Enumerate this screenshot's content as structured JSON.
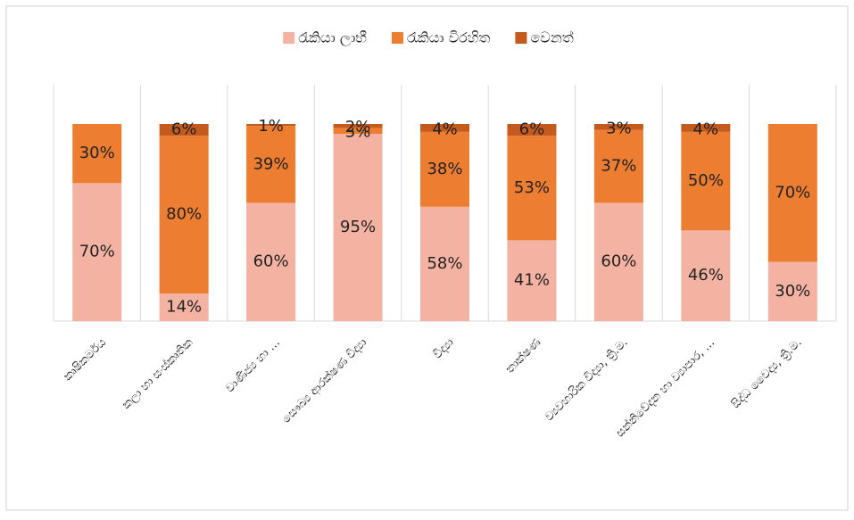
{
  "chart_data": {
    "type": "stacked_bar",
    "categories": [
      "කෘෂිකර්මය",
      "කලා හා සංස්කෘතික",
      "වාණිජ්‍ය හා …",
      "සෞඛ්‍ය ආරක්ෂණ විද්‍යා",
      "විද්‍යා",
      "තාක්ෂණ",
      "ව්‍යවහාරික විද්‍යා, ත්‍රි.ම.",
      "සන්නිවේදන හා ව්‍යාපාර, …",
      "සිද්ධ වෛද්‍ය, ත්‍රි.ම."
    ],
    "series": [
      {
        "name": "රැකියා ලාභී",
        "color": "#f4b3a2",
        "values": [
          70,
          14,
          60,
          95,
          58,
          41,
          60,
          46,
          30
        ],
        "value_labels": [
          "70%",
          "14%",
          "60%",
          "95%",
          "58%",
          "41%",
          "60%",
          "46%",
          "30%"
        ]
      },
      {
        "name": "රැකියා විරහිත",
        "color": "#ed7d31",
        "values": [
          30,
          80,
          39,
          3,
          38,
          53,
          37,
          50,
          70
        ],
        "value_labels": [
          "30%",
          "80%",
          "39%",
          "3%",
          "38%",
          "53%",
          "37%",
          "50%",
          "70%"
        ]
      },
      {
        "name": "වෙනත්",
        "color": "#c55a1e",
        "values": [
          null,
          6,
          1,
          2,
          4,
          6,
          3,
          4,
          null
        ],
        "value_labels": [
          null,
          "6%",
          "1%",
          "2%",
          "4%",
          "6%",
          "3%",
          "4%",
          null
        ]
      }
    ],
    "grid": true,
    "legend": "top"
  }
}
